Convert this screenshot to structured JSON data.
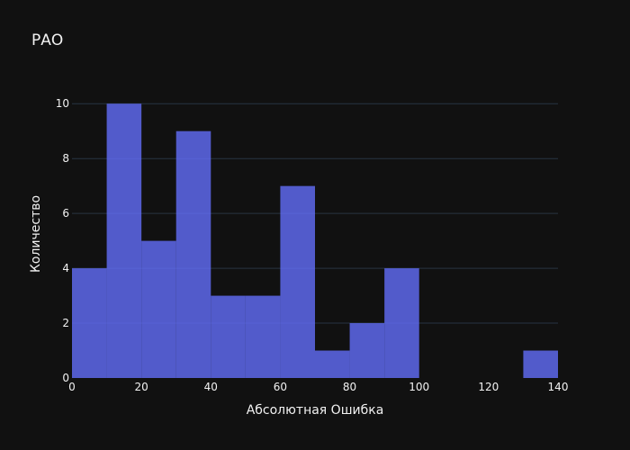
{
  "chart_data": {
    "type": "bar",
    "title": "РАО",
    "xlabel": "Абсолютная Ошибка",
    "ylabel": "Количество",
    "bins": [
      {
        "x0": 0,
        "x1": 10,
        "count": 4
      },
      {
        "x0": 10,
        "x1": 20,
        "count": 10
      },
      {
        "x0": 20,
        "x1": 30,
        "count": 5
      },
      {
        "x0": 30,
        "x1": 40,
        "count": 9
      },
      {
        "x0": 40,
        "x1": 50,
        "count": 3
      },
      {
        "x0": 50,
        "x1": 60,
        "count": 3
      },
      {
        "x0": 60,
        "x1": 70,
        "count": 7
      },
      {
        "x0": 70,
        "x1": 80,
        "count": 1
      },
      {
        "x0": 80,
        "x1": 90,
        "count": 2
      },
      {
        "x0": 90,
        "x1": 100,
        "count": 4
      },
      {
        "x0": 100,
        "x1": 110,
        "count": 0
      },
      {
        "x0": 110,
        "x1": 120,
        "count": 0
      },
      {
        "x0": 120,
        "x1": 130,
        "count": 0
      },
      {
        "x0": 130,
        "x1": 140,
        "count": 1
      }
    ],
    "xlim": [
      0,
      140
    ],
    "ylim": [
      0,
      10.5
    ],
    "xticks": [
      "0",
      "20",
      "40",
      "60",
      "80",
      "100",
      "120",
      "140"
    ],
    "yticks": [
      "0",
      "2",
      "4",
      "6",
      "8",
      "10"
    ],
    "grid": true,
    "bar_color": "#636efa",
    "background": "#111111"
  }
}
